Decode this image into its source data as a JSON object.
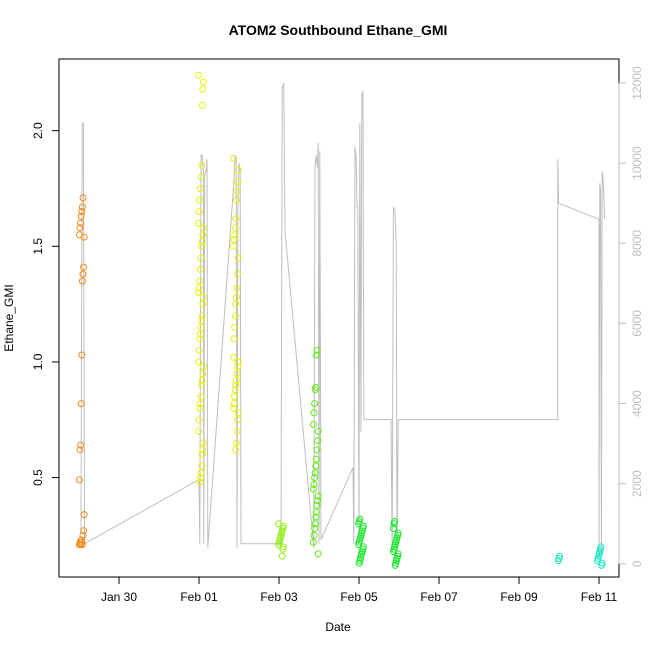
{
  "chart_data": {
    "type": "scatter",
    "title": "ATOM2 Southbound Ethane_GMI",
    "xlabel": "Date",
    "ylabel": "Ethane_GMI",
    "x_tick_labels": [
      "Jan 30",
      "Feb 01",
      "Feb 03",
      "Feb 05",
      "Feb 07",
      "Feb 09",
      "Feb 11"
    ],
    "x_tick_days": [
      30,
      32,
      34,
      36,
      38,
      40,
      42
    ],
    "xlim_days": [
      28.5,
      42.5
    ],
    "ylim": [
      0.07,
      2.31
    ],
    "y_ticks": [
      0.5,
      1.0,
      1.5,
      2.0
    ],
    "y_tick_labels": [
      "0.5",
      "1.0",
      "1.5",
      "2.0"
    ],
    "y2_lim": [
      -330,
      12600
    ],
    "y2_ticks": [
      0,
      2000,
      4000,
      6000,
      8000,
      10000,
      12000
    ],
    "y2_tick_labels": [
      "0",
      "2000",
      "4000",
      "6000",
      "8000",
      "10000",
      "12000"
    ],
    "line_color": "#bebebe",
    "flights": [
      {
        "day": 29.07,
        "color": "#f28c1a",
        "values": [
          0.21,
          0.22,
          0.21,
          0.23,
          0.22,
          0.21,
          0.25,
          0.27,
          0.34,
          0.49,
          0.62,
          0.64,
          0.82,
          1.03,
          1.35,
          1.38,
          1.41,
          1.54,
          1.55,
          1.58,
          1.6,
          1.63,
          1.65,
          1.67,
          1.71
        ]
      },
      {
        "day": 32.05,
        "color": "#e6f20d",
        "values": [
          0.48,
          0.5,
          0.52,
          0.55,
          0.6,
          0.62,
          0.65,
          0.7,
          0.75,
          0.8,
          0.82,
          0.85,
          0.9,
          0.92,
          0.95,
          0.98,
          1.0,
          1.05,
          1.1,
          1.12,
          1.15,
          1.18,
          1.2,
          1.25,
          1.28,
          1.3,
          1.32,
          1.35,
          1.4,
          1.45,
          1.5,
          1.52,
          1.55,
          1.58,
          1.6,
          1.65,
          1.7,
          1.75,
          1.8,
          1.85,
          2.11,
          2.18,
          2.21,
          2.24
        ]
      },
      {
        "day": 32.92,
        "color": "#e6f20d",
        "values": [
          0.62,
          0.65,
          0.7,
          0.75,
          0.78,
          0.8,
          0.82,
          0.85,
          0.88,
          0.9,
          0.92,
          0.95,
          0.98,
          1.0,
          1.02,
          1.1,
          1.15,
          1.2,
          1.25,
          1.28,
          1.32,
          1.38,
          1.45,
          1.5,
          1.53,
          1.55,
          1.58,
          1.62,
          1.7,
          1.74,
          1.78,
          1.83,
          1.88
        ]
      },
      {
        "day": 34.05,
        "color": "#8ef00f",
        "values": [
          0.16,
          0.19,
          0.2,
          0.21,
          0.22,
          0.23,
          0.24,
          0.25,
          0.26,
          0.27,
          0.28,
          0.29,
          0.3
        ]
      },
      {
        "day": 34.92,
        "color": "#5eed12",
        "values": [
          0.17,
          0.22,
          0.25,
          0.28,
          0.3,
          0.33,
          0.35,
          0.38,
          0.4,
          0.42,
          0.45,
          0.47,
          0.5,
          0.52,
          0.55,
          0.58,
          0.62,
          0.66,
          0.7,
          0.73,
          0.78,
          0.82,
          0.88,
          0.89,
          1.03,
          1.05
        ]
      },
      {
        "day": 36.05,
        "color": "#18e72a",
        "values": [
          0.13,
          0.14,
          0.15,
          0.16,
          0.17,
          0.18,
          0.19,
          0.2,
          0.21,
          0.22,
          0.23,
          0.24,
          0.25,
          0.26,
          0.27,
          0.28,
          0.29,
          0.3,
          0.31,
          0.32
        ]
      },
      {
        "day": 36.92,
        "color": "#18e72a",
        "values": [
          0.12,
          0.13,
          0.14,
          0.15,
          0.16,
          0.17,
          0.18,
          0.19,
          0.2,
          0.21,
          0.22,
          0.23,
          0.24,
          0.25,
          0.26,
          0.28,
          0.3,
          0.31
        ]
      },
      {
        "day": 40.97,
        "color": "#1ce8b4",
        "values": [
          0.14,
          0.15,
          0.16
        ]
      },
      {
        "day": 42.02,
        "color": "#1ae8c6",
        "values": [
          0.12,
          0.13,
          0.14,
          0.15,
          0.16,
          0.17,
          0.18,
          0.19,
          0.2
        ]
      }
    ],
    "altitude_path": [
      [
        29.05,
        800
      ],
      [
        29.08,
        11000
      ],
      [
        29.11,
        11000
      ],
      [
        29.14,
        500
      ],
      [
        32.0,
        2100
      ],
      [
        32.02,
        500
      ],
      [
        32.05,
        10200
      ],
      [
        32.08,
        10200
      ],
      [
        32.11,
        9800
      ],
      [
        32.12,
        500
      ],
      [
        32.14,
        9700
      ],
      [
        32.17,
        9800
      ],
      [
        32.19,
        9900
      ],
      [
        32.2,
        10100
      ],
      [
        32.22,
        400
      ],
      [
        32.87,
        9500
      ],
      [
        32.9,
        10200
      ],
      [
        32.93,
        10100
      ],
      [
        32.95,
        400
      ],
      [
        32.97,
        8800
      ],
      [
        33.0,
        10000
      ],
      [
        33.03,
        9800
      ],
      [
        33.05,
        500
      ],
      [
        34.05,
        500
      ],
      [
        34.08,
        11900
      ],
      [
        34.1,
        11900
      ],
      [
        34.12,
        12000
      ],
      [
        34.15,
        8300
      ],
      [
        34.87,
        400
      ],
      [
        34.9,
        9900
      ],
      [
        34.93,
        10200
      ],
      [
        34.96,
        9900
      ],
      [
        34.98,
        10500
      ],
      [
        35.0,
        500
      ],
      [
        35.02,
        10300
      ],
      [
        35.05,
        600
      ],
      [
        35.85,
        2400
      ],
      [
        35.87,
        500
      ],
      [
        35.9,
        10400
      ],
      [
        35.93,
        10100
      ],
      [
        35.95,
        8900
      ],
      [
        35.97,
        8900
      ],
      [
        36.0,
        500
      ],
      [
        36.02,
        11000
      ],
      [
        36.05,
        3300
      ],
      [
        36.07,
        11700
      ],
      [
        36.1,
        11800
      ],
      [
        36.12,
        3600
      ],
      [
        36.8,
        3600
      ],
      [
        36.83,
        300
      ],
      [
        36.86,
        8900
      ],
      [
        36.9,
        8800
      ],
      [
        36.93,
        8000
      ],
      [
        36.95,
        300
      ],
      [
        36.98,
        3600
      ],
      [
        40.0,
        3600
      ],
      [
        40.97,
        3600
      ],
      [
        40.97,
        10100
      ],
      [
        40.99,
        9000
      ],
      [
        42.0,
        8600
      ],
      [
        42.0,
        200
      ],
      [
        42.02,
        9500
      ],
      [
        42.04,
        9300
      ],
      [
        42.06,
        200
      ],
      [
        42.08,
        9800
      ],
      [
        42.1,
        9600
      ],
      [
        42.12,
        9300
      ],
      [
        42.14,
        8600
      ]
    ]
  }
}
